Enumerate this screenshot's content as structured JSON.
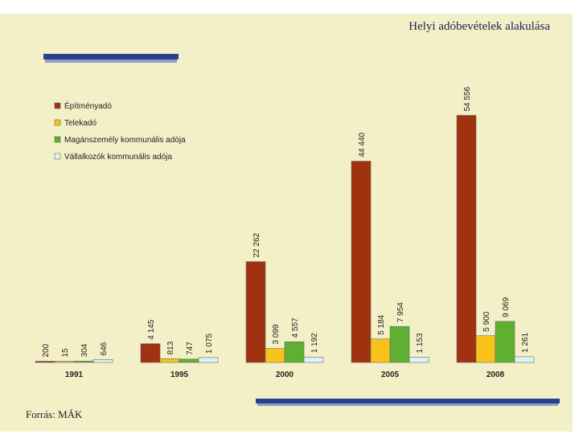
{
  "slide": {
    "title": "Helyi adóbevételek alakulása",
    "source": "Forrás: MÁK"
  },
  "chart_data": {
    "type": "bar",
    "title": "",
    "xlabel": "",
    "ylabel": "",
    "categories": [
      "1991",
      "1995",
      "2000",
      "2005",
      "2008"
    ],
    "series": [
      {
        "name": "Építményadó",
        "color": "#a0320f",
        "values": [
          200,
          4145,
          22262,
          44440,
          54556
        ],
        "labels": [
          "200",
          "4 145",
          "22 262",
          "44 440",
          "54 556"
        ]
      },
      {
        "name": "Telekadó",
        "color": "#f7c21a",
        "values": [
          15,
          813,
          3099,
          5184,
          5900
        ],
        "labels": [
          "15",
          "813",
          "3 099",
          "5 184",
          "5 900"
        ]
      },
      {
        "name": "Magánszemély kommunális adója",
        "color": "#5fb030",
        "values": [
          304,
          747,
          4557,
          7954,
          9069
        ],
        "labels": [
          "304",
          "747",
          "4 557",
          "7 954",
          "9 069"
        ]
      },
      {
        "name": "Vállalkozók kommunális adója",
        "color": "#ddf2f6",
        "values": [
          646,
          1075,
          1192,
          1153,
          1261
        ],
        "labels": [
          "646",
          "1 075",
          "1 192",
          "1 153",
          "1 261"
        ]
      }
    ],
    "ylim": [
      0,
      55000
    ],
    "grid": false,
    "legend": "top-left",
    "value_labels": "vertical-above-bars"
  }
}
